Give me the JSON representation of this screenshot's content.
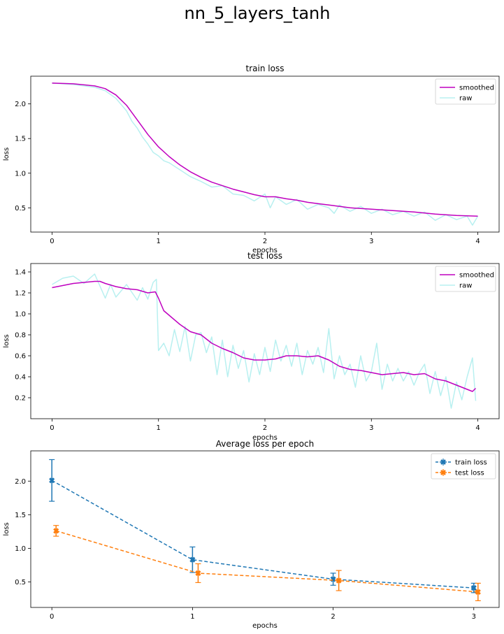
{
  "figure": {
    "suptitle": "nn_5_layers_tanh"
  },
  "colors": {
    "smoothed": "#bf00bf",
    "raw": "#b8f0f0",
    "train": "#1f77b4",
    "test": "#ff7f0e"
  },
  "chart_data": [
    {
      "type": "line",
      "title": "train loss",
      "xlabel": "epochs",
      "ylabel": "loss",
      "xlim": [
        -0.2,
        4.2
      ],
      "ylim": [
        0.15,
        2.4
      ],
      "xticks": [
        0,
        1,
        2,
        3,
        4
      ],
      "yticks": [
        0.5,
        1.0,
        1.5,
        2.0
      ],
      "xtick_labels": [
        "0",
        "1",
        "2",
        "3",
        "4"
      ],
      "ytick_labels": [
        "0.5",
        "1.0",
        "1.5",
        "2.0"
      ],
      "legend": "top-right",
      "series": [
        {
          "name": "smoothed",
          "x": [
            0.0,
            0.2,
            0.4,
            0.5,
            0.6,
            0.7,
            0.8,
            0.9,
            1.0,
            1.1,
            1.2,
            1.3,
            1.4,
            1.5,
            1.6,
            1.7,
            1.8,
            1.9,
            2.0,
            2.1,
            2.2,
            2.3,
            2.4,
            2.5,
            2.6,
            2.7,
            2.8,
            2.9,
            3.0,
            3.2,
            3.4,
            3.6,
            3.7,
            3.8,
            4.0
          ],
          "y": [
            2.3,
            2.29,
            2.26,
            2.22,
            2.13,
            1.98,
            1.77,
            1.56,
            1.38,
            1.24,
            1.12,
            1.02,
            0.94,
            0.87,
            0.82,
            0.77,
            0.73,
            0.69,
            0.66,
            0.66,
            0.63,
            0.61,
            0.58,
            0.56,
            0.54,
            0.52,
            0.5,
            0.49,
            0.48,
            0.46,
            0.44,
            0.41,
            0.4,
            0.39,
            0.38
          ]
        },
        {
          "name": "raw",
          "x": [
            0.0,
            0.2,
            0.4,
            0.5,
            0.6,
            0.7,
            0.75,
            0.8,
            0.85,
            0.9,
            0.95,
            1.0,
            1.05,
            1.1,
            1.2,
            1.3,
            1.4,
            1.5,
            1.6,
            1.7,
            1.8,
            1.9,
            2.0,
            2.05,
            2.1,
            2.2,
            2.3,
            2.4,
            2.5,
            2.6,
            2.65,
            2.7,
            2.8,
            2.9,
            3.0,
            3.1,
            3.2,
            3.3,
            3.4,
            3.5,
            3.6,
            3.7,
            3.8,
            3.9,
            3.95,
            4.0
          ],
          "y": [
            2.3,
            2.28,
            2.24,
            2.19,
            2.08,
            1.9,
            1.75,
            1.65,
            1.52,
            1.42,
            1.3,
            1.25,
            1.18,
            1.15,
            1.05,
            0.95,
            0.88,
            0.8,
            0.82,
            0.7,
            0.68,
            0.6,
            0.7,
            0.5,
            0.66,
            0.55,
            0.62,
            0.48,
            0.55,
            0.5,
            0.42,
            0.54,
            0.45,
            0.52,
            0.42,
            0.48,
            0.4,
            0.45,
            0.38,
            0.44,
            0.32,
            0.4,
            0.33,
            0.38,
            0.25,
            0.38
          ]
        }
      ]
    },
    {
      "type": "line",
      "title": "test loss",
      "xlabel": "epochs",
      "ylabel": "loss",
      "xlim": [
        -0.2,
        4.2
      ],
      "ylim": [
        0.0,
        1.48
      ],
      "xticks": [
        0,
        1,
        2,
        3,
        4
      ],
      "yticks": [
        0.2,
        0.4,
        0.6,
        0.8,
        1.0,
        1.2,
        1.4
      ],
      "xtick_labels": [
        "0",
        "1",
        "2",
        "3",
        "4"
      ],
      "ytick_labels": [
        "0.2",
        "0.4",
        "0.6",
        "0.8",
        "1.0",
        "1.2",
        "1.4"
      ],
      "legend": "top-right",
      "series": [
        {
          "name": "smoothed",
          "x": [
            0.0,
            0.1,
            0.2,
            0.3,
            0.4,
            0.45,
            0.5,
            0.6,
            0.7,
            0.8,
            0.9,
            0.97,
            1.0,
            1.05,
            1.2,
            1.3,
            1.4,
            1.5,
            1.6,
            1.7,
            1.8,
            1.9,
            2.0,
            2.1,
            2.2,
            2.3,
            2.4,
            2.5,
            2.6,
            2.7,
            2.8,
            2.9,
            3.0,
            3.1,
            3.2,
            3.3,
            3.4,
            3.5,
            3.6,
            3.7,
            3.8,
            3.9,
            3.95,
            3.98
          ],
          "y": [
            1.25,
            1.27,
            1.29,
            1.3,
            1.31,
            1.31,
            1.29,
            1.26,
            1.24,
            1.23,
            1.2,
            1.21,
            1.15,
            1.03,
            0.9,
            0.83,
            0.8,
            0.72,
            0.67,
            0.63,
            0.58,
            0.56,
            0.56,
            0.57,
            0.6,
            0.6,
            0.59,
            0.6,
            0.56,
            0.5,
            0.47,
            0.46,
            0.44,
            0.42,
            0.43,
            0.44,
            0.42,
            0.43,
            0.38,
            0.36,
            0.32,
            0.28,
            0.26,
            0.29
          ]
        },
        {
          "name": "raw",
          "x": [
            0.0,
            0.1,
            0.2,
            0.3,
            0.4,
            0.5,
            0.55,
            0.6,
            0.7,
            0.8,
            0.85,
            0.9,
            0.95,
            0.98,
            1.0,
            1.05,
            1.1,
            1.15,
            1.2,
            1.25,
            1.3,
            1.35,
            1.4,
            1.45,
            1.5,
            1.55,
            1.6,
            1.65,
            1.7,
            1.75,
            1.8,
            1.85,
            1.9,
            1.95,
            2.0,
            2.05,
            2.1,
            2.15,
            2.2,
            2.25,
            2.3,
            2.35,
            2.4,
            2.45,
            2.5,
            2.55,
            2.6,
            2.65,
            2.7,
            2.75,
            2.8,
            2.85,
            2.9,
            2.95,
            3.0,
            3.05,
            3.1,
            3.15,
            3.2,
            3.25,
            3.3,
            3.35,
            3.4,
            3.45,
            3.5,
            3.55,
            3.6,
            3.65,
            3.7,
            3.75,
            3.8,
            3.85,
            3.9,
            3.95,
            3.98
          ],
          "y": [
            1.28,
            1.34,
            1.36,
            1.29,
            1.38,
            1.15,
            1.28,
            1.16,
            1.28,
            1.13,
            1.25,
            1.14,
            1.3,
            1.33,
            0.65,
            0.72,
            0.6,
            0.85,
            0.64,
            0.88,
            0.55,
            0.8,
            0.82,
            0.63,
            0.78,
            0.42,
            0.75,
            0.4,
            0.7,
            0.48,
            0.65,
            0.35,
            0.62,
            0.42,
            0.68,
            0.45,
            0.75,
            0.55,
            0.7,
            0.5,
            0.72,
            0.42,
            0.65,
            0.52,
            0.68,
            0.44,
            0.86,
            0.38,
            0.6,
            0.42,
            0.52,
            0.3,
            0.6,
            0.36,
            0.45,
            0.72,
            0.28,
            0.52,
            0.36,
            0.48,
            0.36,
            0.45,
            0.32,
            0.44,
            0.52,
            0.24,
            0.45,
            0.22,
            0.4,
            0.1,
            0.35,
            0.18,
            0.4,
            0.58,
            0.17
          ]
        }
      ]
    },
    {
      "type": "line",
      "title": "Average loss per epoch",
      "xlabel": "epochs",
      "ylabel": "loss",
      "xlim": [
        -0.15,
        3.18
      ],
      "ylim": [
        0.12,
        2.45
      ],
      "xticks": [
        0,
        1,
        2,
        3
      ],
      "yticks": [
        0.5,
        1.0,
        1.5,
        2.0
      ],
      "xtick_labels": [
        "0",
        "1",
        "2",
        "3"
      ],
      "ytick_labels": [
        "0.5",
        "1.0",
        "1.5",
        "2.0"
      ],
      "legend": "top-right",
      "series": [
        {
          "name": "train loss",
          "x": [
            0,
            1,
            2,
            3
          ],
          "y": [
            2.01,
            0.83,
            0.54,
            0.41
          ],
          "yerr": [
            0.31,
            0.19,
            0.09,
            0.07
          ]
        },
        {
          "name": "test loss",
          "x": [
            0.03,
            1.04,
            2.04,
            3.03
          ],
          "y": [
            1.26,
            0.63,
            0.52,
            0.35
          ],
          "yerr": [
            0.08,
            0.14,
            0.15,
            0.13
          ]
        }
      ]
    }
  ]
}
